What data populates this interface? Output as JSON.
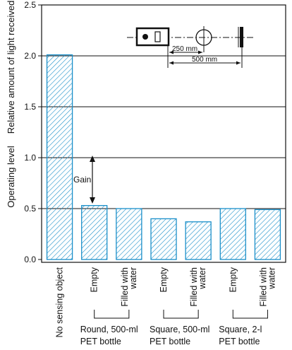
{
  "chart_data": {
    "type": "bar",
    "title": "",
    "ylabel_top": "Relative amount of light received",
    "ylabel_bottom": "Operating level",
    "ylim": [
      0,
      2.5
    ],
    "yticks": [
      "0.0",
      "0.5",
      "1.0",
      "1.5",
      "2.0",
      "2.5"
    ],
    "grid": "horizontal",
    "categories": [
      "No sensing object",
      "Empty",
      "Filled with water",
      "Empty",
      "Filled with water",
      "Empty",
      "Filled with water"
    ],
    "values": [
      2.01,
      0.53,
      0.5,
      0.4,
      0.37,
      0.5,
      0.49
    ],
    "groups": [
      {
        "label_line1": "Round, 500-ml",
        "label_line2": "PET bottle",
        "members": [
          1,
          2
        ]
      },
      {
        "label_line1": "Square, 500-ml",
        "label_line2": "PET bottle",
        "members": [
          3,
          4
        ]
      },
      {
        "label_line1": "Square, 2-l",
        "label_line2": "PET bottle",
        "members": [
          5,
          6
        ]
      }
    ],
    "annotations": {
      "gain": "Gain",
      "operating_level": 1.0,
      "dim_250": "250 mm",
      "dim_500": "500 mm"
    },
    "colors": {
      "bar_stroke": "#1a8fc9",
      "hatch": "#1a8fc9"
    }
  }
}
